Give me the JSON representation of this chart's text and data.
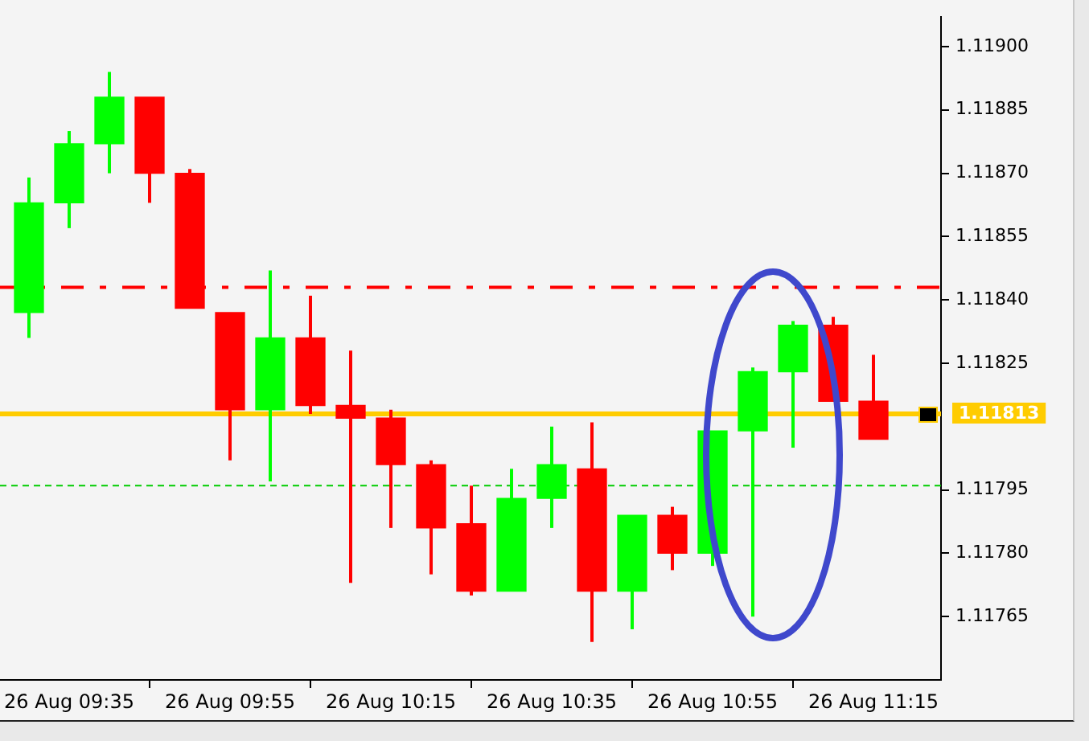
{
  "chart_data": {
    "type": "candlestick",
    "categories": [
      null,
      "26 Aug 09:35",
      null,
      null,
      null,
      "26 Aug 09:55",
      null,
      null,
      null,
      "26 Aug 10:15",
      null,
      null,
      null,
      "26 Aug 10:35",
      null,
      null,
      null,
      "26 Aug 10:55",
      null,
      null,
      null,
      "26 Aug 11:15"
    ],
    "ohlc": [
      [
        1.11837,
        1.11869,
        1.11831,
        1.11863
      ],
      [
        1.11863,
        1.1188,
        1.11857,
        1.11877
      ],
      [
        1.11877,
        1.11894,
        1.1187,
        1.11888
      ],
      [
        1.11888,
        1.11888,
        1.11863,
        1.1187
      ],
      [
        1.1187,
        1.11871,
        1.11838,
        1.11838
      ],
      [
        1.11837,
        1.11837,
        1.11802,
        1.11814
      ],
      [
        1.11814,
        1.11847,
        1.11797,
        1.11831
      ],
      [
        1.11831,
        1.11841,
        1.11813,
        1.11815
      ],
      [
        1.11815,
        1.11828,
        1.11773,
        1.11812
      ],
      [
        1.11812,
        1.11814,
        1.11786,
        1.11801
      ],
      [
        1.11801,
        1.11802,
        1.11775,
        1.11786
      ],
      [
        1.11787,
        1.11796,
        1.1177,
        1.11771
      ],
      [
        1.11771,
        1.118,
        1.11771,
        1.11793
      ],
      [
        1.11793,
        1.1181,
        1.11786,
        1.11801
      ],
      [
        1.118,
        1.11811,
        1.11759,
        1.11771
      ],
      [
        1.11771,
        1.11789,
        1.11762,
        1.11789
      ],
      [
        1.11789,
        1.11791,
        1.11776,
        1.1178
      ],
      [
        1.1178,
        1.11809,
        1.11777,
        1.11809
      ],
      [
        1.11809,
        1.11824,
        1.11765,
        1.11823
      ],
      [
        1.11823,
        1.11835,
        1.11805,
        1.11834
      ],
      [
        1.11834,
        1.11836,
        1.11816,
        1.11816
      ],
      [
        1.11816,
        1.11827,
        1.11807,
        1.11807
      ]
    ],
    "colors": [
      "#00ff00",
      "#00ff00",
      "#00ff00",
      "#ff0000",
      "#ff0000",
      "#ff0000",
      "#00ff00",
      "#ff0000",
      "#ff0000",
      "#ff0000",
      "#ff0000",
      "#ff0000",
      "#00ff00",
      "#00ff00",
      "#ff0000",
      "#00ff00",
      "#ff0000",
      "#00ff00",
      "#00ff00",
      "#00ff00",
      "#ff0000",
      "#ff0000"
    ],
    "ylim": [
      1.1175,
      1.11907
    ],
    "yticks": [
      1.11765,
      {
        "value": 1.1178,
        "label": "1.11780"
      },
      1.11795,
      1.11825,
      {
        "value": 1.1184,
        "label": "1.11840"
      },
      1.11855,
      {
        "value": 1.1187,
        "label": "1.11870"
      },
      1.11885,
      {
        "value": 1.119,
        "label": "1.11900"
      }
    ],
    "ref_lines": [
      {
        "axis": "y",
        "value": 1.11843,
        "color": "#ff0000",
        "line_style": "dashdot"
      },
      {
        "axis": "y",
        "value": 1.11813,
        "label": "1.11813",
        "color": "#ffcc00",
        "line_style": "solid"
      },
      {
        "axis": "y",
        "value": 1.11796,
        "color": "#00cc00",
        "line_style": "dashed"
      }
    ],
    "grid": false,
    "legend": false
  }
}
